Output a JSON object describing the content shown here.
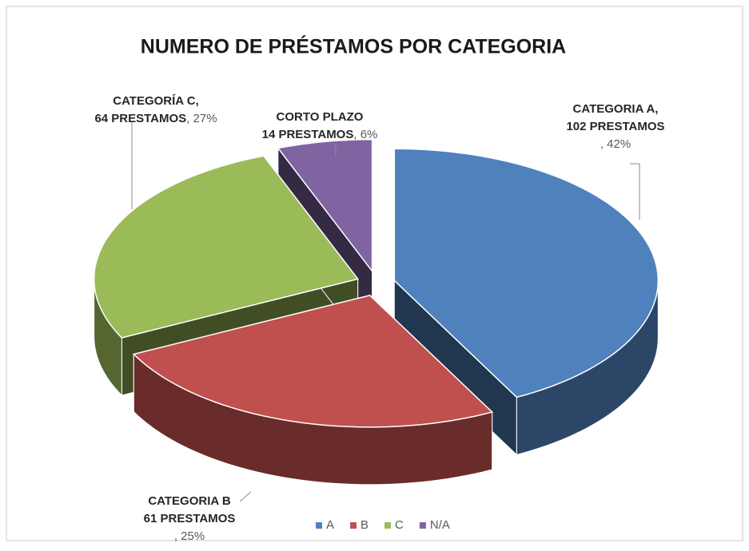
{
  "chart_data": {
    "type": "pie",
    "title": "NUMERO DE PRÉSTAMOS POR CATEGORIA",
    "categories": [
      "A",
      "B",
      "C",
      "N/A"
    ],
    "values": [
      102,
      61,
      64,
      14
    ],
    "value_labels": [
      [
        "CATEGORIA A,",
        "102 PRESTAMOS"
      ],
      [
        "CATEGORIA B",
        "61 PRESTAMOS"
      ],
      [
        "CATEGORÍA C,",
        "64 PRESTAMOS"
      ],
      [
        "CORTO PLAZO",
        "14 PRESTAMOS"
      ]
    ],
    "percent_labels": [
      ", 42%",
      ", 25%",
      ", 27%",
      ", 6%"
    ],
    "colors": [
      "#4f81bd",
      "#c0504d",
      "#9bbb59",
      "#8064a2"
    ],
    "legend": "bottom",
    "3d": true
  }
}
